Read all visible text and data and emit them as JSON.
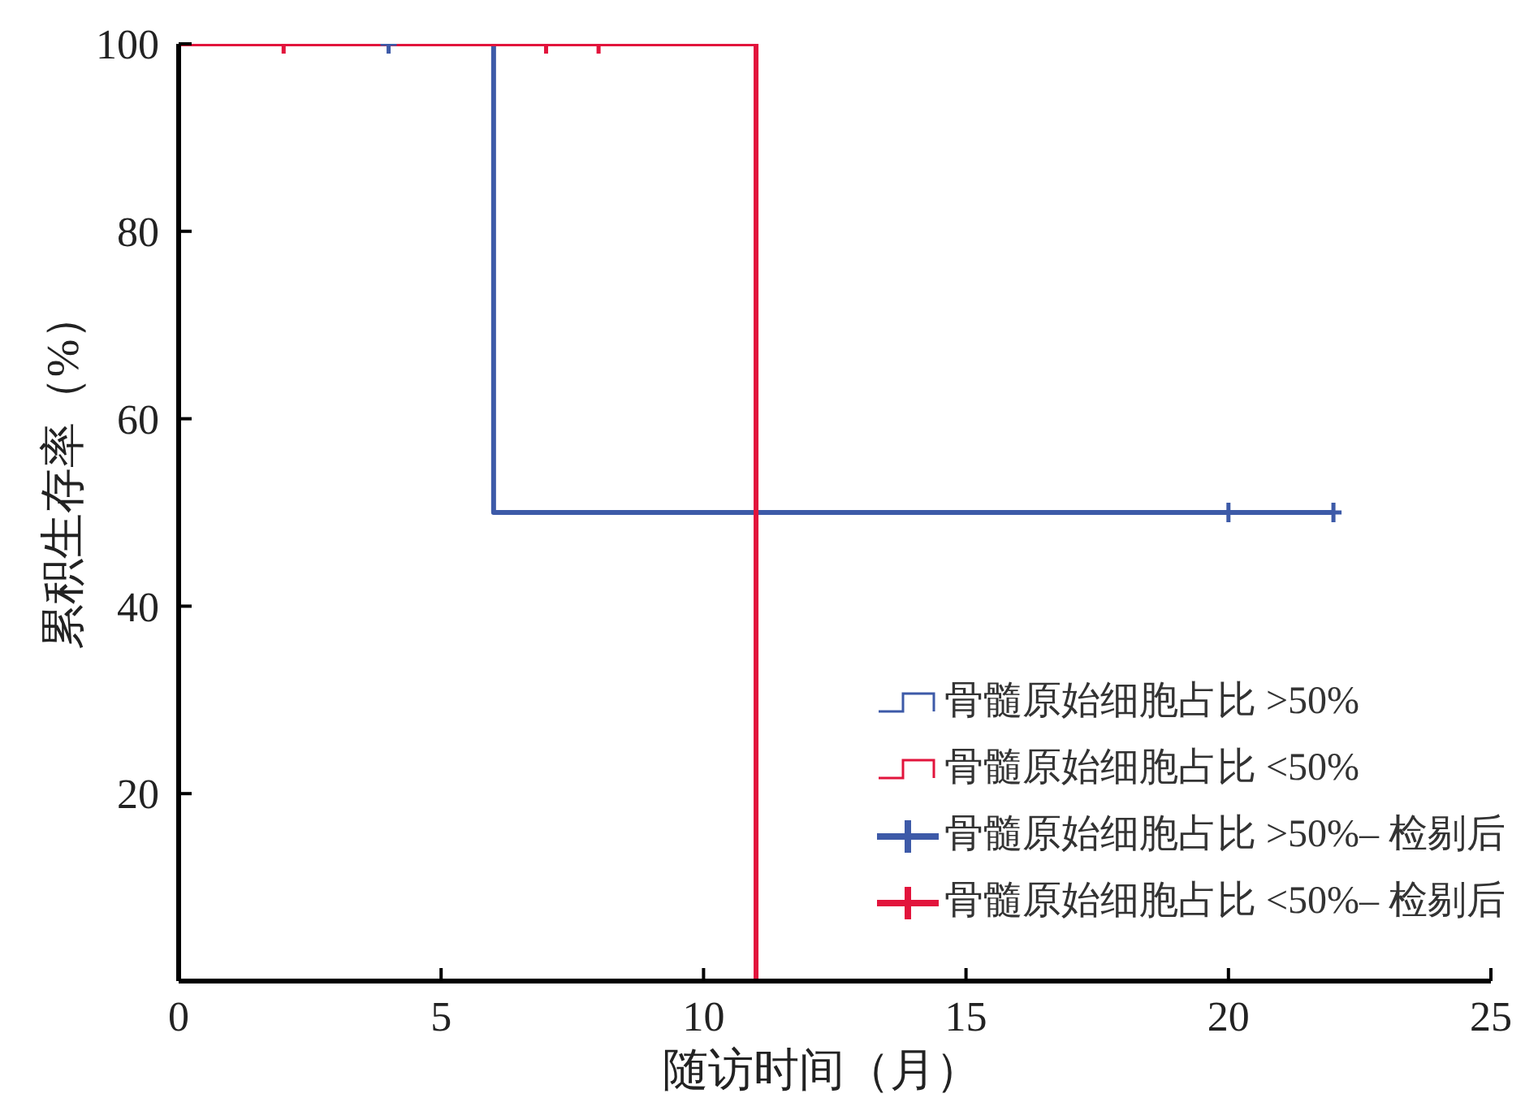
{
  "chart_data": {
    "type": "step",
    "xlabel": "随访时间（月）",
    "ylabel": "累积生存率（%）",
    "xlim": [
      0,
      25
    ],
    "xticks": [
      0,
      5,
      10,
      15,
      20,
      25
    ],
    "ylim": [
      0,
      100
    ],
    "yticks": [
      20,
      40,
      60,
      80,
      100
    ],
    "legend": "bottom right",
    "series": [
      {
        "name": "骨髓原始细胞占比 >50%",
        "color": "#3d5aa8",
        "x": [
          0,
          6,
          22
        ],
        "values": [
          100,
          50,
          50
        ]
      },
      {
        "name": "骨髓原始细胞占比 <50%",
        "color": "#e2143c",
        "x": [
          0,
          11
        ],
        "values": [
          100,
          0
        ]
      },
      {
        "name": "骨髓原始细胞占比 >50%– 检剔后",
        "type": "scatter",
        "marker": "cross",
        "color": "#3d5aa8",
        "x": [
          4,
          20,
          22
        ],
        "values": [
          100,
          50,
          50
        ]
      },
      {
        "name": "骨髓原始细胞占比 <50%– 检剔后",
        "type": "scatter",
        "marker": "cross",
        "color": "#e2143c",
        "x": [
          2,
          7,
          8
        ],
        "values": [
          100,
          100,
          100
        ]
      }
    ]
  }
}
